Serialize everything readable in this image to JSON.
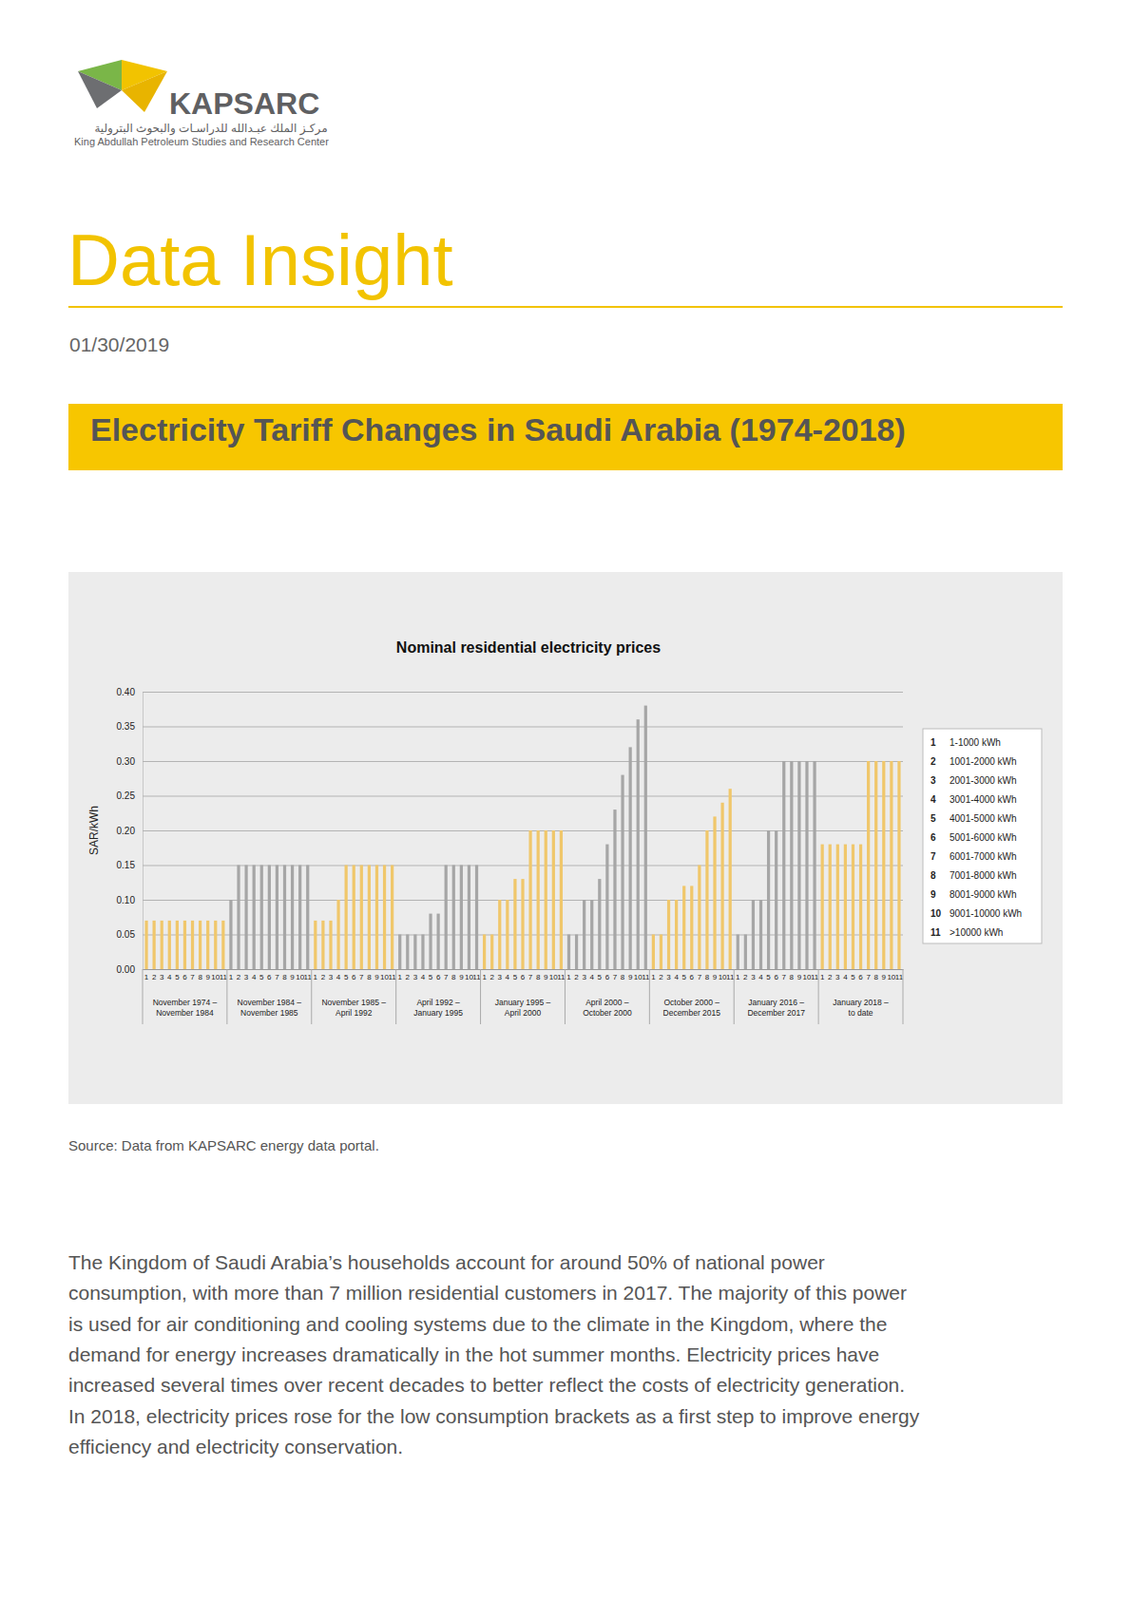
{
  "header": {
    "logo_name": "KAPSARC",
    "logo_arabic": "مركـز الملك عبـدالله للدراسـات والبحوث البترولية",
    "logo_english": "King Abdullah Petroleum Studies and Research Center",
    "heading": "Data Insight",
    "date": "01/30/2019",
    "title": "Electricity Tariff Changes in Saudi Arabia (1974-2018)"
  },
  "chart_data": {
    "type": "bar",
    "title": "Nominal residential electricity prices",
    "y_label": "SAR/kWh",
    "categories": [
      "1",
      "2",
      "3",
      "4",
      "5",
      "6",
      "7",
      "8",
      "9",
      "10",
      "11",
      "1",
      "2",
      "3",
      "4",
      "5",
      "6",
      "7",
      "8",
      "9",
      "10",
      "11",
      "1",
      "2",
      "3",
      "4",
      "5",
      "6",
      "7",
      "8",
      "9",
      "10",
      "11",
      "1",
      "2",
      "3",
      "4",
      "5",
      "6",
      "7",
      "8",
      "9",
      "10",
      "11",
      "1",
      "2",
      "3",
      "4",
      "5",
      "6",
      "7",
      "8",
      "9",
      "10",
      "11",
      "1",
      "2",
      "3",
      "4",
      "5",
      "6",
      "7",
      "8",
      "9",
      "10",
      "11",
      "1",
      "2",
      "3",
      "4",
      "5",
      "6",
      "7",
      "8",
      "9",
      "10",
      "11",
      "1",
      "2",
      "3",
      "4",
      "5",
      "6",
      "7",
      "8",
      "9",
      "10",
      "11",
      "1",
      "2",
      "3",
      "4",
      "5",
      "6",
      "7",
      "8",
      "9",
      "10",
      "11"
    ],
    "values": [
      0.07,
      0.07,
      0.07,
      0.07,
      0.07,
      0.07,
      0.07,
      0.07,
      0.07,
      0.07,
      0.07,
      0.1,
      0.15,
      0.15,
      0.15,
      0.15,
      0.15,
      0.15,
      0.15,
      0.15,
      0.15,
      0.15,
      0.07,
      0.07,
      0.07,
      0.1,
      0.15,
      0.15,
      0.15,
      0.15,
      0.15,
      0.15,
      0.15,
      0.05,
      0.05,
      0.05,
      0.05,
      0.08,
      0.08,
      0.15,
      0.15,
      0.15,
      0.15,
      0.15,
      0.05,
      0.05,
      0.1,
      0.1,
      0.13,
      0.13,
      0.2,
      0.2,
      0.2,
      0.2,
      0.2,
      0.05,
      0.05,
      0.1,
      0.1,
      0.13,
      0.18,
      0.23,
      0.28,
      0.32,
      0.36,
      0.38,
      0.05,
      0.05,
      0.1,
      0.1,
      0.12,
      0.12,
      0.15,
      0.2,
      0.22,
      0.24,
      0.26,
      0.05,
      0.05,
      0.1,
      0.1,
      0.2,
      0.2,
      0.3,
      0.3,
      0.3,
      0.3,
      0.3,
      0.18,
      0.18,
      0.18,
      0.18,
      0.18,
      0.18,
      0.3,
      0.3,
      0.3,
      0.3,
      0.3
    ],
    "colors": [
      "#f0c76b",
      "#f0c76b",
      "#f0c76b",
      "#f0c76b",
      "#f0c76b",
      "#f0c76b",
      "#f0c76b",
      "#f0c76b",
      "#f0c76b",
      "#f0c76b",
      "#f0c76b",
      "#a6a6a6",
      "#a6a6a6",
      "#a6a6a6",
      "#a6a6a6",
      "#a6a6a6",
      "#a6a6a6",
      "#a6a6a6",
      "#a6a6a6",
      "#a6a6a6",
      "#a6a6a6",
      "#a6a6a6",
      "#f0c76b",
      "#f0c76b",
      "#f0c76b",
      "#f0c76b",
      "#f0c76b",
      "#f0c76b",
      "#f0c76b",
      "#f0c76b",
      "#f0c76b",
      "#f0c76b",
      "#f0c76b",
      "#a6a6a6",
      "#a6a6a6",
      "#a6a6a6",
      "#a6a6a6",
      "#a6a6a6",
      "#a6a6a6",
      "#a6a6a6",
      "#a6a6a6",
      "#a6a6a6",
      "#a6a6a6",
      "#a6a6a6",
      "#f0c76b",
      "#f0c76b",
      "#f0c76b",
      "#f0c76b",
      "#f0c76b",
      "#f0c76b",
      "#f0c76b",
      "#f0c76b",
      "#f0c76b",
      "#f0c76b",
      "#f0c76b",
      "#a6a6a6",
      "#a6a6a6",
      "#a6a6a6",
      "#a6a6a6",
      "#a6a6a6",
      "#a6a6a6",
      "#a6a6a6",
      "#a6a6a6",
      "#a6a6a6",
      "#a6a6a6",
      "#a6a6a6",
      "#f0c76b",
      "#f0c76b",
      "#f0c76b",
      "#f0c76b",
      "#f0c76b",
      "#f0c76b",
      "#f0c76b",
      "#f0c76b",
      "#f0c76b",
      "#f0c76b",
      "#f0c76b",
      "#a6a6a6",
      "#a6a6a6",
      "#a6a6a6",
      "#a6a6a6",
      "#a6a6a6",
      "#a6a6a6",
      "#a6a6a6",
      "#a6a6a6",
      "#a6a6a6",
      "#a6a6a6",
      "#a6a6a6",
      "#f0c76b",
      "#f0c76b",
      "#f0c76b",
      "#f0c76b",
      "#f0c76b",
      "#f0c76b",
      "#f0c76b",
      "#f0c76b",
      "#f0c76b",
      "#f0c76b",
      "#f0c76b"
    ],
    "group_labels": [
      [
        "November 1974 –",
        "November 1984"
      ],
      [
        "November 1984 –",
        "November 1985"
      ],
      [
        "November 1985 –",
        "April 1992"
      ],
      [
        "April 1992 –",
        "January 1995"
      ],
      [
        "January 1995 –",
        "April 2000"
      ],
      [
        "April 2000 –",
        "October 2000"
      ],
      [
        "October 2000 –",
        "December 2015"
      ],
      [
        "January 2016 –",
        "December 2017"
      ],
      [
        "January 2018 –",
        "to date"
      ]
    ],
    "bracket_key": [
      {
        "id": 1,
        "label": "1-1000 kWh"
      },
      {
        "id": 2,
        "label": "1001-2000 kWh"
      },
      {
        "id": 3,
        "label": "2001-3000 kWh"
      },
      {
        "id": 4,
        "label": "3001-4000 kWh"
      },
      {
        "id": 5,
        "label": "4001-5000 kWh"
      },
      {
        "id": 6,
        "label": "5001-6000 kWh"
      },
      {
        "id": 7,
        "label": "6001-7000 kWh"
      },
      {
        "id": 8,
        "label": "7001-8000 kWh"
      },
      {
        "id": 9,
        "label": "8001-9000 kWh"
      },
      {
        "id": 10,
        "label": "9001-10000 kWh"
      },
      {
        "id": 11,
        "label": ">10000 kWh"
      }
    ],
    "ylim": [
      0,
      0.4
    ],
    "yticks": [
      {
        "value": 0,
        "label": "0.00"
      },
      {
        "value": 0.05,
        "label": "0.05"
      },
      {
        "value": 0.1,
        "label": "0.10"
      },
      {
        "value": 0.15,
        "label": "0.15"
      },
      {
        "value": 0.2,
        "label": "0.20"
      },
      {
        "value": 0.25,
        "label": "0.25"
      },
      {
        "value": 0.3,
        "label": "0.30"
      },
      {
        "value": 0.35,
        "label": "0.35"
      },
      {
        "value": 0.4,
        "label": "0.40"
      }
    ],
    "grid": true
  },
  "source": "Source: Data from KAPSARC energy data portal.",
  "body": [
    "The Kingdom of Saudi Arabia’s households account for around 50% of national power",
    "consumption, with more than 7 million residential customers in 2017. The majority of this power",
    "is used for air conditioning and cooling systems due to the climate in the Kingdom, where the",
    "demand for energy increases dramatically in the hot summer months. Electricity prices have",
    "increased several times over recent decades to better reflect the costs of electricity generation.",
    "In 2018, electricity prices rose for the low consumption brackets as a first step to improve energy",
    "efficiency and electricity conservation."
  ]
}
